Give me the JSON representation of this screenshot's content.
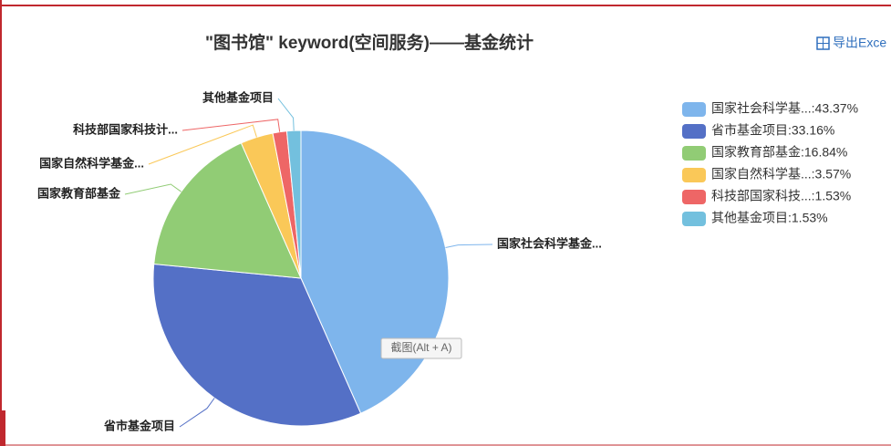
{
  "chart_data": {
    "type": "pie",
    "title": "\"图书馆\" keyword(空间服务)——基金统计",
    "export_button": "导出Exce",
    "tooltip": "截图(Alt + A)",
    "categories": [
      "国家社会科学基金...",
      "省市基金项目",
      "国家教育部基金",
      "国家自然科学基金...",
      "科技部国家科技计...",
      "其他基金项目"
    ],
    "series": [
      {
        "name": "基金统计",
        "values": [
          43.37,
          33.16,
          16.84,
          3.57,
          1.53,
          1.53
        ],
        "value_labels": [
          "国家社会科学基...:43.37%",
          "省市基金项目:33.16%",
          "国家教育部基金:16.84%",
          "国家自然科学基...:3.57%",
          "科技部国家科技...:1.53%",
          "其他基金项目:1.53%"
        ],
        "colors": [
          "#7eb5ec",
          "#5470c6",
          "#91cc75",
          "#fac858",
          "#ee6666",
          "#73c0de"
        ]
      }
    ],
    "legend": "right"
  }
}
